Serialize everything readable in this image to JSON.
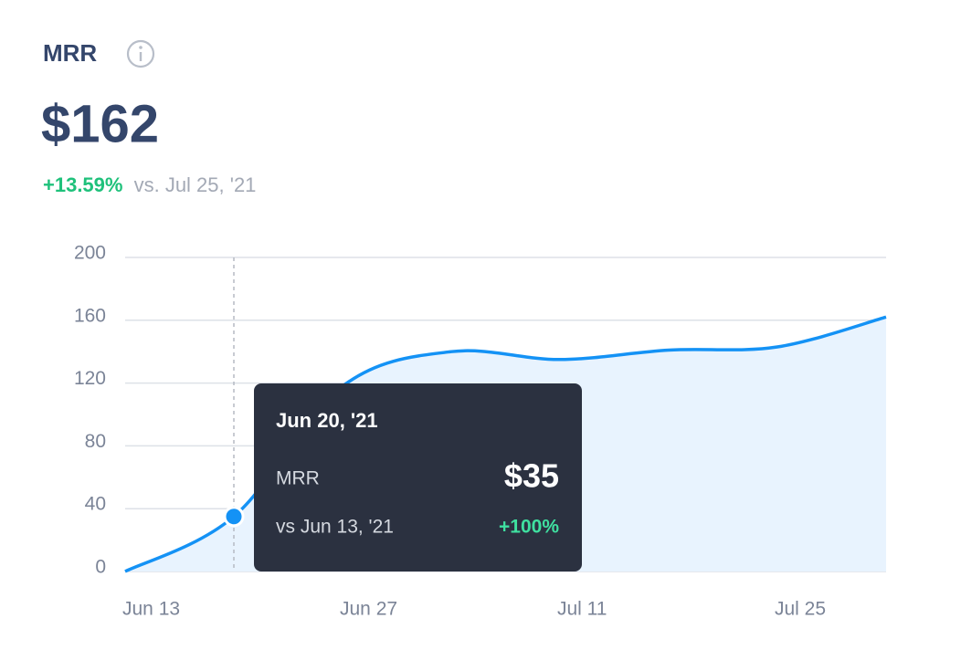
{
  "header": {
    "title": "MRR",
    "value": "$162",
    "change": "+13.59%",
    "comparison": "vs. Jul 25, '21"
  },
  "chart_data": {
    "type": "line",
    "categories": [
      "Jun 13",
      null,
      "Jun 27",
      null,
      "Jul 11",
      null,
      "Jul 25",
      null
    ],
    "series": [
      {
        "name": "MRR",
        "color": "#1492f5",
        "values": [
          0,
          35,
          118,
          140,
          135,
          141,
          143,
          162
        ]
      }
    ],
    "ylim": [
      0,
      200
    ],
    "yticks": [
      0,
      40,
      80,
      120,
      160,
      200
    ],
    "grid": true,
    "tooltip": {
      "date": "Jun 20, '21",
      "label": "MRR",
      "value": "$35",
      "comparison": "vs Jun 13, '21",
      "change": "+100%"
    }
  }
}
